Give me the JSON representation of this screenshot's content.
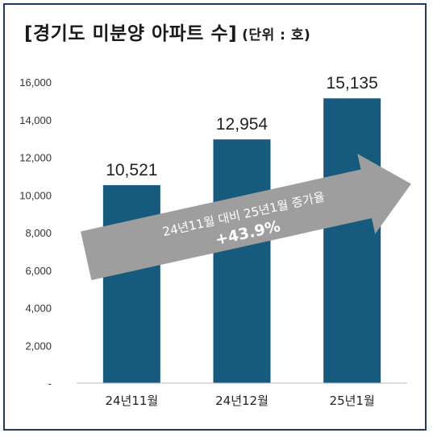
{
  "header": {
    "title": "[경기도 미분양 아파트 수]",
    "unit": "(단위 : 호)"
  },
  "chart_data": {
    "type": "bar",
    "categories": [
      "24년11월",
      "24년12월",
      "25년1월"
    ],
    "values": [
      10521,
      12954,
      15135
    ],
    "data_labels": [
      "10,521",
      "12,954",
      "15,135"
    ],
    "ylim": [
      0,
      16000
    ],
    "yticks": [
      0,
      2000,
      4000,
      6000,
      8000,
      10000,
      12000,
      14000,
      16000
    ],
    "ytick_labels": [
      "-",
      "2,000",
      "4,000",
      "6,000",
      "8,000",
      "10,000",
      "12,000",
      "14,000",
      "16,000"
    ],
    "bar_color": "#165a7e",
    "grid": false,
    "annotation": {
      "line1": "24년11월 대비 25년1월 증가율",
      "line2": "+43.9%",
      "color": "#9e9e9e"
    }
  }
}
